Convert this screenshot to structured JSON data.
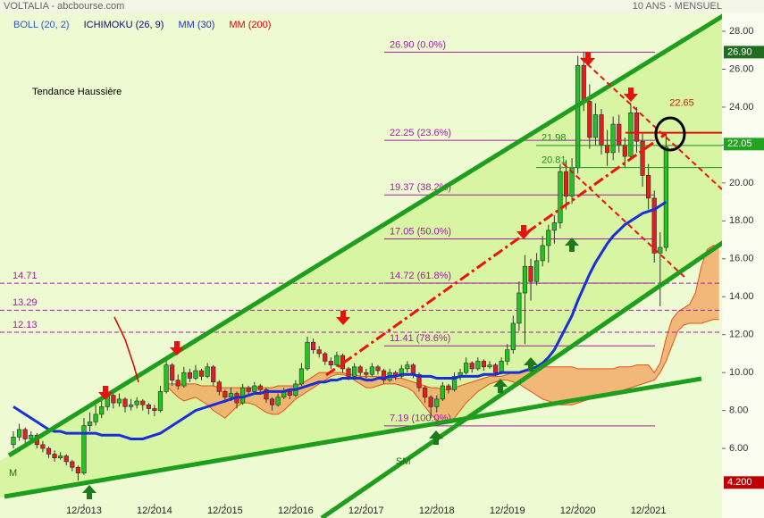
{
  "header": {
    "source": "VOLTALIA - abcbourse.com",
    "period": "10 ANS - MENSUEL"
  },
  "chart_data": {
    "type": "candlestick",
    "title": "Tendance Haussière",
    "annotations": [
      "M",
      "SM"
    ],
    "categories": [
      null,
      null,
      null,
      null,
      null,
      null,
      null,
      null,
      null,
      null,
      null,
      null,
      "12/2013",
      null,
      null,
      null,
      null,
      null,
      null,
      null,
      null,
      null,
      null,
      null,
      "12/2014",
      null,
      null,
      null,
      null,
      null,
      null,
      null,
      null,
      null,
      null,
      null,
      "12/2015",
      null,
      null,
      null,
      null,
      null,
      null,
      null,
      null,
      null,
      null,
      null,
      "12/2016",
      null,
      null,
      null,
      null,
      null,
      null,
      null,
      null,
      null,
      null,
      null,
      "12/2017",
      null,
      null,
      null,
      null,
      null,
      null,
      null,
      null,
      null,
      null,
      null,
      "12/2018",
      null,
      null,
      null,
      null,
      null,
      null,
      null,
      null,
      null,
      null,
      null,
      "12/2019",
      null,
      null,
      null,
      null,
      null,
      null,
      null,
      null,
      null,
      null,
      null,
      "12/2020",
      null,
      null,
      null,
      null,
      null,
      null,
      null,
      null,
      null,
      null,
      null,
      "12/2021",
      null,
      null,
      null,
      null,
      null,
      null,
      null,
      null,
      null,
      null,
      null,
      null
    ],
    "ohlc": [
      [
        6.2,
        6.9,
        6.0,
        6.6
      ],
      [
        6.6,
        7.3,
        6.4,
        7.0
      ],
      [
        7.0,
        7.1,
        6.3,
        6.5
      ],
      [
        6.5,
        6.9,
        6.3,
        6.7
      ],
      [
        6.7,
        6.8,
        6.0,
        6.2
      ],
      [
        6.2,
        6.4,
        5.8,
        6.0
      ],
      [
        6.0,
        6.1,
        5.5,
        5.7
      ],
      [
        5.7,
        5.9,
        5.3,
        5.5
      ],
      [
        5.5,
        5.8,
        5.4,
        5.6
      ],
      [
        5.6,
        5.7,
        5.1,
        5.3
      ],
      [
        5.3,
        5.4,
        4.8,
        5.0
      ],
      [
        5.0,
        5.1,
        4.3,
        4.7
      ],
      [
        4.7,
        7.6,
        4.6,
        7.2
      ],
      [
        7.2,
        7.9,
        6.9,
        7.4
      ],
      [
        7.4,
        8.3,
        7.2,
        7.8
      ],
      [
        7.8,
        8.6,
        7.6,
        8.2
      ],
      [
        8.2,
        9.1,
        8.0,
        8.8
      ],
      [
        8.8,
        8.9,
        8.1,
        8.4
      ],
      [
        8.4,
        8.9,
        8.2,
        8.6
      ],
      [
        8.6,
        8.7,
        7.9,
        8.2
      ],
      [
        8.2,
        8.6,
        8.0,
        8.3
      ],
      [
        8.3,
        8.7,
        8.1,
        8.5
      ],
      [
        8.5,
        8.6,
        8.0,
        8.3
      ],
      [
        8.3,
        8.4,
        7.8,
        8.1
      ],
      [
        8.1,
        8.3,
        7.7,
        8.0
      ],
      [
        8.0,
        9.3,
        7.9,
        9.0
      ],
      [
        9.0,
        10.8,
        8.9,
        10.4
      ],
      [
        10.4,
        10.5,
        9.3,
        9.6
      ],
      [
        9.6,
        9.9,
        9.1,
        9.3
      ],
      [
        9.3,
        10.3,
        9.2,
        10.0
      ],
      [
        10.0,
        10.2,
        9.5,
        9.7
      ],
      [
        9.7,
        10.4,
        9.6,
        10.1
      ],
      [
        10.1,
        10.2,
        9.6,
        9.8
      ],
      [
        9.8,
        10.5,
        9.7,
        10.3
      ],
      [
        10.3,
        10.4,
        9.3,
        9.5
      ],
      [
        9.5,
        9.6,
        8.8,
        9.0
      ],
      [
        9.0,
        9.1,
        8.4,
        8.7
      ],
      [
        8.7,
        9.2,
        8.5,
        8.9
      ],
      [
        8.9,
        9.0,
        8.1,
        8.4
      ],
      [
        8.4,
        9.4,
        8.3,
        9.2
      ],
      [
        9.2,
        9.3,
        8.8,
        9.0
      ],
      [
        9.0,
        9.5,
        8.9,
        9.3
      ],
      [
        9.3,
        9.4,
        8.9,
        9.1
      ],
      [
        9.1,
        9.2,
        8.4,
        8.6
      ],
      [
        8.6,
        8.7,
        8.0,
        8.3
      ],
      [
        8.3,
        8.9,
        8.2,
        8.7
      ],
      [
        8.7,
        9.2,
        8.6,
        9.0
      ],
      [
        9.0,
        9.1,
        8.6,
        8.8
      ],
      [
        8.8,
        9.6,
        8.7,
        9.4
      ],
      [
        9.4,
        10.5,
        9.3,
        10.2
      ],
      [
        10.2,
        11.9,
        10.1,
        11.6
      ],
      [
        11.6,
        11.8,
        11.0,
        11.2
      ],
      [
        11.2,
        11.4,
        10.8,
        11.0
      ],
      [
        11.0,
        11.1,
        10.4,
        10.6
      ],
      [
        10.6,
        10.8,
        10.2,
        10.4
      ],
      [
        10.4,
        11.1,
        10.3,
        10.9
      ],
      [
        10.9,
        11.0,
        10.0,
        10.2
      ],
      [
        10.2,
        10.3,
        9.6,
        9.8
      ],
      [
        9.8,
        10.5,
        9.7,
        10.3
      ],
      [
        10.3,
        10.4,
        9.8,
        10.0
      ],
      [
        10.0,
        10.2,
        9.7,
        9.9
      ],
      [
        9.9,
        10.5,
        9.8,
        10.3
      ],
      [
        10.3,
        10.4,
        9.9,
        10.1
      ],
      [
        10.1,
        10.2,
        9.4,
        9.6
      ],
      [
        9.6,
        10.2,
        9.5,
        10.0
      ],
      [
        10.0,
        10.1,
        9.6,
        9.8
      ],
      [
        9.8,
        10.4,
        9.7,
        10.2
      ],
      [
        10.2,
        10.6,
        10.0,
        10.4
      ],
      [
        10.4,
        10.5,
        9.7,
        9.9
      ],
      [
        9.9,
        10.0,
        9.0,
        9.2
      ],
      [
        9.2,
        9.3,
        8.4,
        8.7
      ],
      [
        8.7,
        8.8,
        7.6,
        8.2
      ],
      [
        8.2,
        8.8,
        7.9,
        8.6
      ],
      [
        8.6,
        9.5,
        8.5,
        9.3
      ],
      [
        9.3,
        9.4,
        8.9,
        9.1
      ],
      [
        9.1,
        10.0,
        9.0,
        9.8
      ],
      [
        9.8,
        10.2,
        9.6,
        10.0
      ],
      [
        10.0,
        10.8,
        9.9,
        10.5
      ],
      [
        10.5,
        10.6,
        10.0,
        10.2
      ],
      [
        10.2,
        10.8,
        10.1,
        10.6
      ],
      [
        10.6,
        10.7,
        10.1,
        10.3
      ],
      [
        10.3,
        10.6,
        10.2,
        10.4
      ],
      [
        10.4,
        10.5,
        9.8,
        10.0
      ],
      [
        10.0,
        10.8,
        9.9,
        10.6
      ],
      [
        10.6,
        11.5,
        10.4,
        11.2
      ],
      [
        11.2,
        13.0,
        11.0,
        12.6
      ],
      [
        12.6,
        14.8,
        12.2,
        14.2
      ],
      [
        14.2,
        16.2,
        11.5,
        15.6
      ],
      [
        15.6,
        16.0,
        13.8,
        14.8
      ],
      [
        14.8,
        16.3,
        14.6,
        15.9
      ],
      [
        15.9,
        17.2,
        15.6,
        16.7
      ],
      [
        16.7,
        17.8,
        15.8,
        17.5
      ],
      [
        17.5,
        18.3,
        16.8,
        17.9
      ],
      [
        17.9,
        21.0,
        17.6,
        20.6
      ],
      [
        20.6,
        21.2,
        18.6,
        19.3
      ],
      [
        19.3,
        21.3,
        18.9,
        20.8
      ],
      [
        20.8,
        26.7,
        20.5,
        26.2
      ],
      [
        26.2,
        26.9,
        23.8,
        24.3
      ],
      [
        24.3,
        25.2,
        21.8,
        22.4
      ],
      [
        22.4,
        24.2,
        22.0,
        23.6
      ],
      [
        23.6,
        23.9,
        21.5,
        22.0
      ],
      [
        22.0,
        22.8,
        20.9,
        21.6
      ],
      [
        21.6,
        23.5,
        21.2,
        23.1
      ],
      [
        23.1,
        23.6,
        21.6,
        22.0
      ],
      [
        22.0,
        22.4,
        20.8,
        21.4
      ],
      [
        21.4,
        24.2,
        21.2,
        23.7
      ],
      [
        23.7,
        24.0,
        21.6,
        22.2
      ],
      [
        22.2,
        22.6,
        19.8,
        20.4
      ],
      [
        20.4,
        21.0,
        18.6,
        19.2
      ],
      [
        19.2,
        19.6,
        15.8,
        16.3
      ],
      [
        16.3,
        17.4,
        13.5,
        16.6
      ],
      [
        16.6,
        22.6,
        16.4,
        21.9
      ],
      null,
      null,
      null,
      null,
      null,
      null,
      null,
      null,
      null
    ],
    "up_color": "#22c322",
    "down_color": "#e02020",
    "series": [
      {
        "name": "BOLL (20, 2)",
        "color": "#3355cc"
      },
      {
        "name": "ICHIMOKU (26, 9)",
        "color": "#0b0b7a",
        "line_color": "#e8501e",
        "fill": "#f3a15c",
        "span_a": [
          null,
          null,
          null,
          null,
          null,
          null,
          null,
          null,
          null,
          null,
          null,
          null,
          null,
          null,
          null,
          null,
          null,
          null,
          null,
          null,
          null,
          null,
          null,
          null,
          null,
          null,
          9.4,
          9.4,
          9.4,
          9.4,
          9.4,
          9.4,
          9.3,
          9.3,
          9.3,
          9.2,
          9.2,
          9.2,
          9.2,
          9.2,
          9.2,
          9.2,
          9.2,
          9.2,
          9.2,
          9.3,
          9.3,
          9.3,
          9.3,
          9.4,
          9.6,
          9.8,
          10.0,
          10.0,
          10.0,
          10.0,
          10.0,
          9.9,
          9.9,
          9.8,
          9.8,
          9.8,
          9.8,
          9.8,
          9.8,
          9.7,
          9.7,
          9.6,
          9.5,
          9.4,
          9.3,
          9.2,
          9.2,
          9.1,
          9.1,
          9.2,
          9.3,
          9.4,
          9.5,
          9.6,
          9.7,
          9.8,
          9.8,
          9.8,
          9.9,
          10.0,
          10.0,
          10.1,
          10.2,
          10.3,
          10.3,
          10.3,
          10.3,
          10.3,
          10.3,
          10.3,
          10.2,
          10.2,
          10.2,
          10.2,
          10.2,
          10.2,
          10.2,
          10.3,
          10.3,
          10.3,
          10.4,
          10.4,
          10.4,
          10.0,
          10.5,
          11.8,
          12.8,
          13.2,
          13.4,
          13.6,
          14.2,
          15.6,
          16.5,
          16.7,
          16.7
        ],
        "span_b": [
          null,
          null,
          null,
          null,
          null,
          null,
          null,
          null,
          null,
          null,
          null,
          null,
          null,
          null,
          null,
          null,
          null,
          null,
          null,
          null,
          null,
          null,
          null,
          null,
          null,
          null,
          9.3,
          9.0,
          8.7,
          8.5,
          8.6,
          8.7,
          8.5,
          8.3,
          8.0,
          7.8,
          7.6,
          7.9,
          8.2,
          8.4,
          8.4,
          8.3,
          8.1,
          7.9,
          7.8,
          7.8,
          8.0,
          8.3,
          8.6,
          8.8,
          9.0,
          9.2,
          9.4,
          9.6,
          9.8,
          9.9,
          9.9,
          9.8,
          9.6,
          9.4,
          9.2,
          9.2,
          9.3,
          9.4,
          9.4,
          9.4,
          9.3,
          9.2,
          9.0,
          8.6,
          8.2,
          7.8,
          7.5,
          7.3,
          7.4,
          7.6,
          8.0,
          8.4,
          8.7,
          9.0,
          9.2,
          9.4,
          9.5,
          9.6,
          9.6,
          9.5,
          9.4,
          9.2,
          9.0,
          8.8,
          8.6,
          8.5,
          8.4,
          8.3,
          8.3,
          8.3,
          8.4,
          8.5,
          8.6,
          8.7,
          8.8,
          8.9,
          9.0,
          9.0,
          9.1,
          9.2,
          9.3,
          9.4,
          9.5,
          9.6,
          10.0,
          10.6,
          11.4,
          12.2,
          12.5,
          12.6,
          12.6,
          12.6,
          12.7,
          12.8,
          12.8
        ]
      },
      {
        "name": "MM (30)",
        "color": "#1a2fd6",
        "values": [
          8.2,
          8.0,
          7.8,
          7.6,
          7.4,
          7.2,
          7.0,
          6.9,
          6.9,
          6.8,
          6.8,
          6.8,
          6.8,
          6.8,
          6.8,
          6.7,
          6.7,
          6.7,
          6.7,
          6.6,
          6.5,
          6.5,
          6.5,
          6.6,
          6.7,
          6.8,
          7.0,
          7.2,
          7.4,
          7.6,
          7.8,
          8.0,
          8.1,
          8.2,
          8.3,
          8.4,
          8.5,
          8.6,
          8.7,
          8.7,
          8.8,
          8.9,
          8.9,
          9.0,
          9.0,
          9.0,
          9.0,
          9.1,
          9.1,
          9.2,
          9.3,
          9.4,
          9.5,
          9.5,
          9.6,
          9.6,
          9.7,
          9.7,
          9.7,
          9.7,
          9.6,
          9.6,
          9.7,
          9.7,
          9.8,
          9.8,
          9.9,
          9.9,
          9.9,
          9.8,
          9.8,
          9.8,
          9.7,
          9.7,
          9.7,
          9.7,
          9.8,
          9.8,
          9.8,
          9.8,
          9.9,
          9.9,
          9.9,
          10.0,
          10.0,
          10.0,
          10.0,
          10.1,
          10.2,
          10.3,
          10.5,
          10.8,
          11.2,
          11.8,
          12.4,
          13.0,
          13.8,
          14.5,
          15.2,
          15.8,
          16.3,
          16.8,
          17.2,
          17.5,
          17.8,
          18.0,
          18.2,
          18.4,
          18.5,
          18.6,
          18.8,
          19.0,
          null,
          null,
          null,
          null,
          null,
          null,
          null,
          null,
          null
        ]
      },
      {
        "name": "MM (200)",
        "color": "#e00000"
      }
    ],
    "fib_levels": [
      {
        "value": 26.9,
        "label": "26.90  (0.0%)"
      },
      {
        "value": 22.25,
        "label": "22.25  (23.6%)"
      },
      {
        "value": 19.37,
        "label": "19.37  (38.2%)"
      },
      {
        "value": 17.05,
        "label": "17.05  (50.0%)"
      },
      {
        "value": 14.72,
        "label": "14.72  (61.8%)"
      },
      {
        "value": 11.41,
        "label": "11.41  (78.6%)"
      },
      {
        "value": 7.19,
        "label": "7.19  (100.0%)"
      }
    ],
    "fib_color": "#a020a0",
    "support_levels": [
      {
        "value": 14.71,
        "label": "14.71"
      },
      {
        "value": 13.29,
        "label": "13.29"
      },
      {
        "value": 12.13,
        "label": "12.13"
      }
    ],
    "resistance_levels": [
      {
        "value": 21.98,
        "label": "21.98"
      },
      {
        "value": 20.81,
        "label": "20.81"
      }
    ],
    "resistance_color": "#1f8f1f",
    "target": {
      "value": 22.65,
      "label": "22.65",
      "color": "#e01010"
    },
    "price_tags": [
      {
        "value": 26.9,
        "label": "26.90",
        "color": "#1f6e1f"
      },
      {
        "value": 22.05,
        "label": "22.05",
        "color": "#22a322"
      },
      {
        "value": 4.2,
        "label": "4.200",
        "color": "#c00000"
      }
    ],
    "ylim": [
      2.33,
      28.99
    ],
    "yticks": [
      {
        "value": 6,
        "label": "6.00"
      },
      {
        "value": 8,
        "label": "8.00"
      },
      {
        "value": 10,
        "label": "10.00"
      },
      {
        "value": 12,
        "label": "12.00"
      },
      {
        "value": 14,
        "label": "14.00"
      },
      {
        "value": 16,
        "label": "16.00"
      },
      {
        "value": 18,
        "label": "18.00"
      },
      {
        "value": 20,
        "label": "20.00"
      },
      {
        "value": 22,
        "label": "22.00"
      },
      {
        "value": 24,
        "label": "24.00"
      },
      {
        "value": 26,
        "label": "26.00"
      },
      {
        "value": 28,
        "label": "28.00"
      }
    ],
    "grid": false
  }
}
